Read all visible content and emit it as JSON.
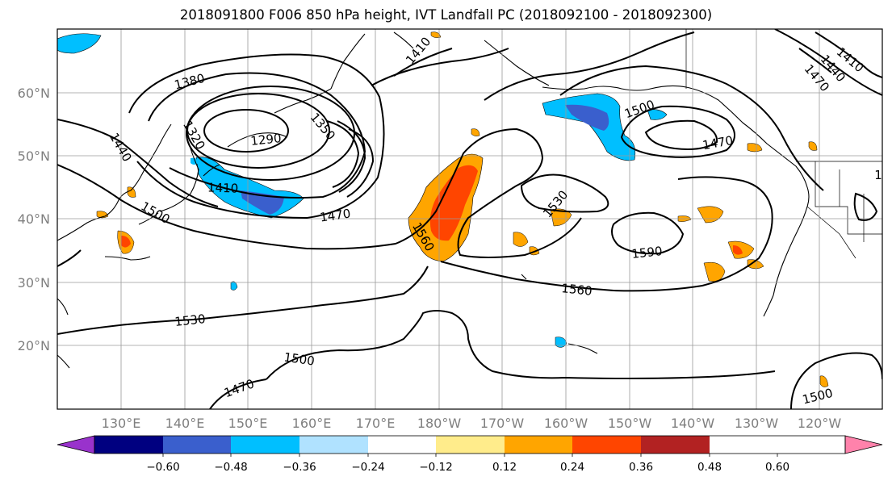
{
  "title": "2018091800 F006 850 hPa height, IVT Landfall PC (2018092100 - 2018092300)",
  "map": {
    "latitude_labels": [
      "60°N",
      "50°N",
      "40°N",
      "30°N",
      "20°N"
    ],
    "longitude_labels": [
      "130°E",
      "140°E",
      "150°E",
      "160°E",
      "170°E",
      "180°W",
      "170°W",
      "160°W",
      "150°W",
      "140°W",
      "130°W",
      "120°W"
    ],
    "height_contour_labels": [
      {
        "text": "1380"
      },
      {
        "text": "1290"
      },
      {
        "text": "1320"
      },
      {
        "text": "1350"
      },
      {
        "text": "1440"
      },
      {
        "text": "1410"
      },
      {
        "text": "1500"
      },
      {
        "text": "1470"
      },
      {
        "text": "1560"
      },
      {
        "text": "1530"
      },
      {
        "text": "1590"
      },
      {
        "text": "1560"
      },
      {
        "text": "1530"
      },
      {
        "text": "1500"
      },
      {
        "text": "1470"
      },
      {
        "text": "1500"
      },
      {
        "text": "1470"
      },
      {
        "text": "1500"
      },
      {
        "text": "1410"
      },
      {
        "text": "1440"
      },
      {
        "text": "1470"
      },
      {
        "text": "1410"
      },
      {
        "text": "1"
      }
    ]
  },
  "colorbar": {
    "tick_labels": [
      "−0.60",
      "−0.48",
      "−0.36",
      "−0.24",
      "−0.12",
      "0.12",
      "0.24",
      "0.36",
      "0.48",
      "0.60"
    ],
    "colors": [
      "#9932cc",
      "#000080",
      "#3a5fcd",
      "#00bfff",
      "#b0e2ff",
      "#ffffff",
      "#ffec8b",
      "#ffa500",
      "#ff4500",
      "#b22222",
      "#ff82ab"
    ]
  }
}
